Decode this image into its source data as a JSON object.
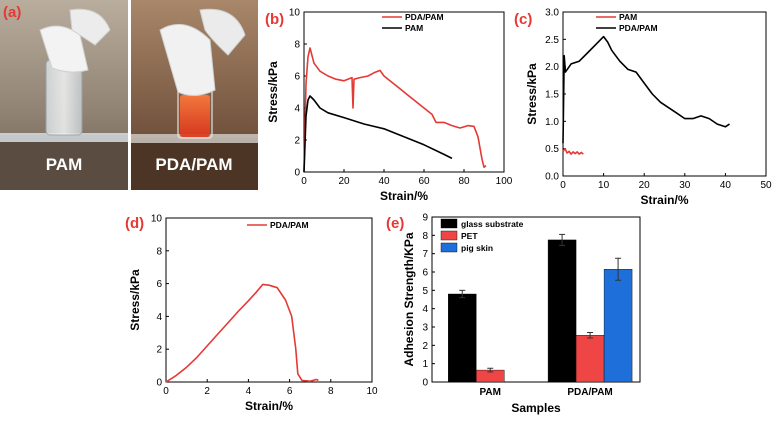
{
  "figure": {
    "panel_labels": [
      "(a)",
      "(b)",
      "(c)",
      "(d)",
      "(e)"
    ],
    "photo_captions": [
      "PAM",
      "PDA/PAM"
    ],
    "colors": {
      "red": "#e53935",
      "black": "#000000",
      "blue": "#1e6fd9",
      "label_red": "#e53935"
    }
  },
  "chart_data": [
    {
      "panel": "(b)",
      "type": "line",
      "xlabel": "Strain/%",
      "ylabel": "Stress/kPa",
      "xlim": [
        0,
        100
      ],
      "ylim": [
        0,
        10
      ],
      "xticks": [
        "0",
        "20",
        "40",
        "60",
        "80",
        "100"
      ],
      "yticks": [
        "0",
        "2",
        "4",
        "6",
        "8",
        "10"
      ],
      "legend": [
        "PDA/PAM",
        "PAM"
      ],
      "series": [
        {
          "name": "PDA/PAM",
          "color": "#e53935",
          "points": [
            [
              0,
              0
            ],
            [
              1,
              5.5
            ],
            [
              2,
              7.2
            ],
            [
              3,
              7.75
            ],
            [
              5,
              6.8
            ],
            [
              8,
              6.3
            ],
            [
              12,
              6.0
            ],
            [
              16,
              5.8
            ],
            [
              20,
              5.7
            ],
            [
              24,
              5.9
            ],
            [
              24.5,
              4.0
            ],
            [
              25,
              5.8
            ],
            [
              28,
              5.9
            ],
            [
              32,
              6.0
            ],
            [
              35,
              6.2
            ],
            [
              38,
              6.35
            ],
            [
              40,
              6.0
            ],
            [
              44,
              5.6
            ],
            [
              48,
              5.2
            ],
            [
              52,
              4.8
            ],
            [
              56,
              4.4
            ],
            [
              60,
              4.0
            ],
            [
              64,
              3.6
            ],
            [
              66,
              3.1
            ],
            [
              70,
              3.1
            ],
            [
              74,
              2.9
            ],
            [
              78,
              2.75
            ],
            [
              82,
              2.9
            ],
            [
              85,
              2.85
            ],
            [
              87,
              2.2
            ],
            [
              89,
              0.8
            ],
            [
              90,
              0.3
            ],
            [
              91,
              0.4
            ]
          ]
        },
        {
          "name": "PAM",
          "color": "#000000",
          "points": [
            [
              0,
              0
            ],
            [
              1,
              3.5
            ],
            [
              2,
              4.5
            ],
            [
              3,
              4.75
            ],
            [
              5,
              4.5
            ],
            [
              8,
              4.0
            ],
            [
              12,
              3.7
            ],
            [
              20,
              3.4
            ],
            [
              30,
              3.0
            ],
            [
              40,
              2.7
            ],
            [
              50,
              2.2
            ],
            [
              60,
              1.7
            ],
            [
              70,
              1.1
            ],
            [
              74,
              0.85
            ]
          ]
        }
      ]
    },
    {
      "panel": "(c)",
      "type": "line",
      "xlabel": "Strain/%",
      "ylabel": "Stress/kPa",
      "xlim": [
        0,
        50
      ],
      "ylim": [
        0,
        3.0
      ],
      "xticks": [
        "0",
        "10",
        "20",
        "30",
        "40",
        "50"
      ],
      "yticks": [
        "0.0",
        "0.5",
        "1.0",
        "1.5",
        "2.0",
        "2.5",
        "3.0"
      ],
      "legend": [
        "PAM",
        "PDA/PAM"
      ],
      "series": [
        {
          "name": "PAM",
          "color": "#e53935",
          "points": [
            [
              0,
              0.45
            ],
            [
              0.5,
              0.5
            ],
            [
              1,
              0.42
            ],
            [
              1.5,
              0.45
            ],
            [
              2,
              0.4
            ],
            [
              2.5,
              0.44
            ],
            [
              3,
              0.41
            ],
            [
              3.5,
              0.44
            ],
            [
              4,
              0.4
            ],
            [
              4.5,
              0.43
            ],
            [
              5,
              0.4
            ]
          ]
        },
        {
          "name": "PDA/PAM",
          "color": "#000000",
          "points": [
            [
              0,
              0.6
            ],
            [
              0.3,
              2.2
            ],
            [
              0.6,
              1.9
            ],
            [
              2,
              2.05
            ],
            [
              4,
              2.1
            ],
            [
              6,
              2.25
            ],
            [
              8,
              2.4
            ],
            [
              10,
              2.55
            ],
            [
              11,
              2.45
            ],
            [
              12,
              2.3
            ],
            [
              14,
              2.1
            ],
            [
              16,
              1.95
            ],
            [
              18,
              1.9
            ],
            [
              20,
              1.7
            ],
            [
              22,
              1.5
            ],
            [
              24,
              1.35
            ],
            [
              26,
              1.25
            ],
            [
              28,
              1.15
            ],
            [
              30,
              1.05
            ],
            [
              32,
              1.05
            ],
            [
              34,
              1.1
            ],
            [
              36,
              1.05
            ],
            [
              38,
              0.95
            ],
            [
              40,
              0.9
            ],
            [
              41,
              0.95
            ]
          ]
        }
      ]
    },
    {
      "panel": "(d)",
      "type": "line",
      "xlabel": "Strain/%",
      "ylabel": "Stress/kPa",
      "xlim": [
        0,
        10
      ],
      "ylim": [
        0,
        10
      ],
      "xticks": [
        "0",
        "2",
        "4",
        "6",
        "8",
        "10"
      ],
      "yticks": [
        "0",
        "2",
        "4",
        "6",
        "8",
        "10"
      ],
      "legend": [
        "PDA/PAM"
      ],
      "series": [
        {
          "name": "PDA/PAM",
          "color": "#e53935",
          "points": [
            [
              0,
              0
            ],
            [
              0.5,
              0.4
            ],
            [
              1,
              0.9
            ],
            [
              1.5,
              1.5
            ],
            [
              2,
              2.2
            ],
            [
              2.5,
              2.9
            ],
            [
              3,
              3.6
            ],
            [
              3.5,
              4.3
            ],
            [
              4,
              4.95
            ],
            [
              4.4,
              5.5
            ],
            [
              4.7,
              5.95
            ],
            [
              5,
              5.9
            ],
            [
              5.4,
              5.75
            ],
            [
              5.8,
              5.0
            ],
            [
              6.1,
              4.0
            ],
            [
              6.3,
              2.0
            ],
            [
              6.4,
              0.5
            ],
            [
              6.6,
              0.1
            ],
            [
              7,
              0.05
            ],
            [
              7.3,
              0.15
            ],
            [
              7.4,
              0.1
            ]
          ]
        }
      ]
    },
    {
      "panel": "(e)",
      "type": "bar",
      "xlabel": "Samples",
      "ylabel": "Adhesion Strength/KPa",
      "ylim": [
        0,
        9
      ],
      "yticks": [
        "0",
        "1",
        "2",
        "3",
        "4",
        "5",
        "6",
        "7",
        "8",
        "9"
      ],
      "categories": [
        "PAM",
        "PDA/PAM"
      ],
      "series": [
        {
          "name": "glass substrate",
          "color": "#000000",
          "values": [
            4.8,
            7.75
          ],
          "errors": [
            0.2,
            0.3
          ]
        },
        {
          "name": "PET",
          "color": "#f04545",
          "values": [
            0.65,
            2.55
          ],
          "errors": [
            0.1,
            0.15
          ]
        },
        {
          "name": "pig skin",
          "color": "#1e6fd9",
          "values": [
            null,
            6.15
          ],
          "errors": [
            null,
            0.6
          ]
        }
      ]
    }
  ]
}
